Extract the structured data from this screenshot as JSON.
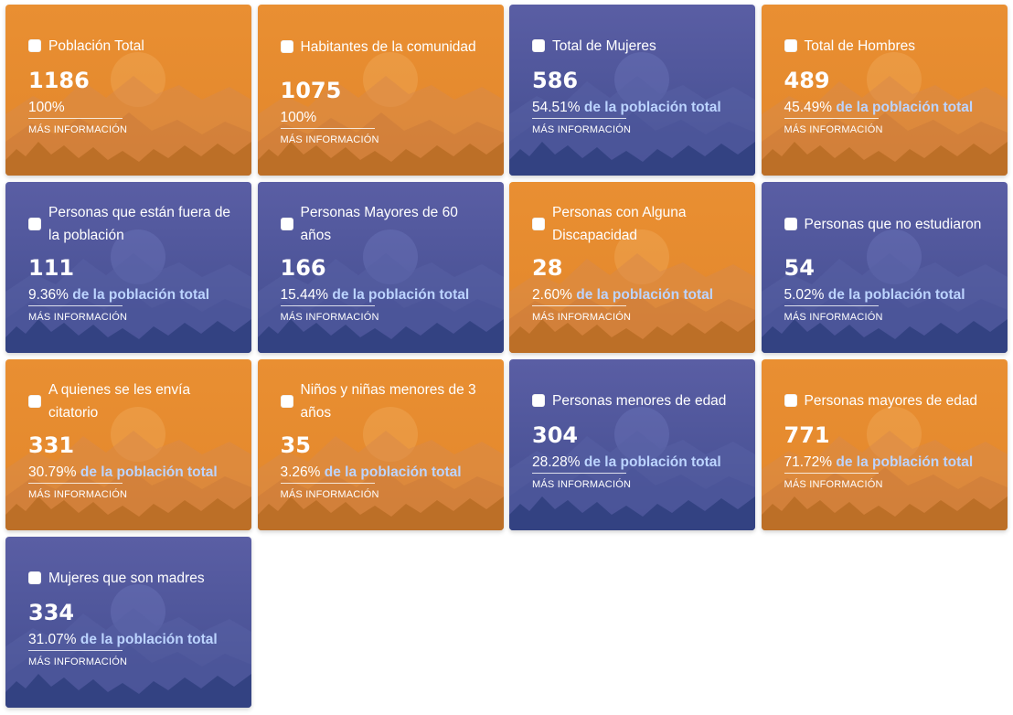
{
  "more_label": "MÁS INFORMACIÓN",
  "colors": {
    "orange": "#e98f32",
    "blue": "#5058a0",
    "pct_suffix": "#bcd4ff"
  },
  "cards": [
    {
      "title": "Población Total",
      "value": "1186",
      "percent": "100%",
      "suffix": "",
      "color": "orange"
    },
    {
      "title": "Habitantes de la comunidad",
      "value": "1075",
      "percent": "100%",
      "suffix": "",
      "color": "orange"
    },
    {
      "title": "Total de Mujeres",
      "value": "586",
      "percent": "54.51%",
      "suffix": "de la población total",
      "color": "blue"
    },
    {
      "title": "Total de Hombres",
      "value": "489",
      "percent": "45.49%",
      "suffix": "de la población total",
      "color": "orange"
    },
    {
      "title": "Personas que están fuera de la población",
      "value": "111",
      "percent": "9.36%",
      "suffix": "de la población total",
      "color": "blue"
    },
    {
      "title": "Personas Mayores de 60 años",
      "value": "166",
      "percent": "15.44%",
      "suffix": "de la población total",
      "color": "blue"
    },
    {
      "title": "Personas con Alguna Discapacidad",
      "value": "28",
      "percent": "2.60%",
      "suffix": "de la población total",
      "color": "orange"
    },
    {
      "title": "Personas que no estudiaron",
      "value": "54",
      "percent": "5.02%",
      "suffix": "de la población total",
      "color": "blue"
    },
    {
      "title": "A quienes se les envía citatorio",
      "value": "331",
      "percent": "30.79%",
      "suffix": "de la población total",
      "color": "orange"
    },
    {
      "title": "Niños y niñas menores de 3 años",
      "value": "35",
      "percent": "3.26%",
      "suffix": "de la población total",
      "color": "orange"
    },
    {
      "title": "Personas menores de edad",
      "value": "304",
      "percent": "28.28%",
      "suffix": "de la población total",
      "color": "blue"
    },
    {
      "title": "Personas mayores de edad",
      "value": "771",
      "percent": "71.72%",
      "suffix": "de la población total",
      "color": "orange"
    },
    {
      "title": "Mujeres que son madres",
      "value": "334",
      "percent": "31.07%",
      "suffix": "de la población total",
      "color": "blue"
    }
  ]
}
